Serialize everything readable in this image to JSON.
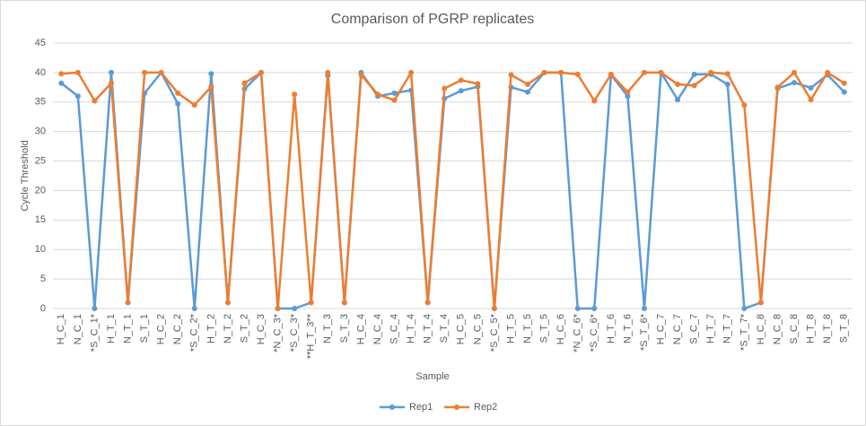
{
  "chart_data": {
    "type": "line",
    "title": "Comparison of PGRP replicates",
    "x_label": "Sample",
    "y_label": "Cycle Threshold",
    "categories": [
      "H_C_1",
      "N_C_1",
      "*S_C_1*",
      "H_T_1",
      "N_T_1",
      "S_T_1",
      "H_C_2",
      "N_C_2",
      "*S_C_2*",
      "H_T_2",
      "N_T_2",
      "S_T_2",
      "H_C_3",
      "*N_C_3*",
      "*S_C_3*",
      "**H_T_3**",
      "N_T_3",
      "S_T_3",
      "H_C_4",
      "N_C_4",
      "S_C_4",
      "H_T_4",
      "N_T_4",
      "S_T_4",
      "H_C_5",
      "N_C_5",
      "*S_C_5*",
      "H_T_5",
      "N_T_5",
      "S_T_5",
      "H_C_6",
      "*N_C_6*",
      "*S_C_6*",
      "H_T_6",
      "N_T_6",
      "*S_T_6*",
      "H_C_7",
      "N_C_7",
      "S_C_7",
      "H_T_7",
      "N_T_7",
      "*S_T_7*",
      "H_C_8",
      "N_C_8",
      "S_C_8",
      "H_T_8",
      "N_T_8",
      "S_T_8"
    ],
    "series": [
      {
        "name": "Rep1",
        "color": "#5b9bd5",
        "values": [
          38.2,
          36,
          0,
          40,
          1,
          36.5,
          40,
          34.7,
          0,
          39.8,
          1,
          37.2,
          40,
          0,
          0,
          1,
          39.5,
          1,
          40,
          36,
          36.5,
          37,
          1,
          35.6,
          36.9,
          37.6,
          0,
          37.5,
          36.7,
          40,
          40,
          0,
          0,
          39.6,
          36,
          0,
          40,
          35.4,
          39.7,
          39.7,
          38,
          0,
          1,
          37.3,
          38.3,
          37.4,
          39.6,
          36.7
        ]
      },
      {
        "name": "Rep2",
        "color": "#ed7d31",
        "values": [
          39.8,
          40,
          35.2,
          38.2,
          1,
          40,
          40,
          36.5,
          34.5,
          37.6,
          1,
          38.2,
          40,
          0,
          36.3,
          1,
          40,
          1,
          39.6,
          36.3,
          35.3,
          40,
          1,
          37.3,
          38.7,
          38.1,
          0,
          39.6,
          38,
          40,
          40,
          39.7,
          35.2,
          39.7,
          36.7,
          40,
          40,
          38,
          37.8,
          40,
          39.8,
          34.5,
          1,
          37.5,
          40,
          35.4,
          40,
          38.2
        ]
      }
    ],
    "ylim": [
      0,
      45
    ],
    "yticks": [
      0,
      5,
      10,
      15,
      20,
      25,
      30,
      35,
      40,
      45
    ],
    "grid": true,
    "legend": "bottom"
  }
}
